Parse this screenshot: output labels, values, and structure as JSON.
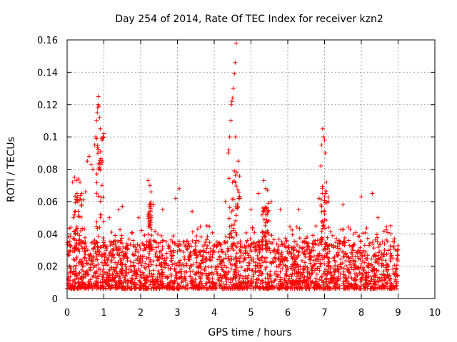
{
  "chart_data": {
    "type": "scatter",
    "title": "Day 254 of 2014, Rate Of TEC Index for receiver kzn2",
    "xlabel": "GPS time / hours",
    "ylabel": "ROTI / TECUs",
    "xlim": [
      0,
      10
    ],
    "ylim": [
      0,
      0.16
    ],
    "grid": true,
    "marker": "+",
    "color": "#ff0000",
    "x_ticks": [
      {
        "value": 0,
        "label": "0"
      },
      {
        "value": 1,
        "label": "1"
      },
      {
        "value": 2,
        "label": "2"
      },
      {
        "value": 3,
        "label": "3"
      },
      {
        "value": 4,
        "label": "4"
      },
      {
        "value": 5,
        "label": "5"
      },
      {
        "value": 6,
        "label": "6"
      },
      {
        "value": 7,
        "label": "7"
      },
      {
        "value": 8,
        "label": "8"
      },
      {
        "value": 9,
        "label": "9"
      },
      {
        "value": 10,
        "label": "10"
      }
    ],
    "y_ticks": [
      {
        "value": 0,
        "label": "0"
      },
      {
        "value": 0.02,
        "label": "0.02"
      },
      {
        "value": 0.04,
        "label": "0.04"
      },
      {
        "value": 0.06,
        "label": "0.06"
      },
      {
        "value": 0.08,
        "label": "0.08"
      },
      {
        "value": 0.1,
        "label": "0.1"
      },
      {
        "value": 0.12,
        "label": "0.12"
      },
      {
        "value": 0.14,
        "label": "0.14"
      },
      {
        "value": 0.16,
        "label": "0.16"
      }
    ],
    "series": [
      {
        "name": "kzn2",
        "x_range": [
          0,
          9
        ],
        "description": "dense scatter of ROTI samples",
        "peaks": [
          {
            "x": [
              0.8,
              1.0
            ],
            "y": [
              0.1,
              0.125
            ]
          },
          {
            "x": [
              0.15,
              0.4
            ],
            "y": [
              0.065,
              0.075
            ]
          },
          {
            "x": [
              2.2,
              2.3
            ],
            "y": [
              0.06,
              0.073
            ]
          },
          {
            "x": [
              4.4,
              4.7
            ],
            "y": [
              0.08,
              0.158
            ]
          },
          {
            "x": [
              5.3,
              5.5
            ],
            "y": [
              0.06,
              0.073
            ]
          },
          {
            "x": [
              6.9,
              7.1
            ],
            "y": [
              0.07,
              0.106
            ]
          }
        ],
        "points": [
          [
            0.1,
            0.044
          ],
          [
            0.15,
            0.072
          ],
          [
            0.2,
            0.075
          ],
          [
            0.25,
            0.073
          ],
          [
            0.3,
            0.074
          ],
          [
            0.35,
            0.072
          ],
          [
            0.4,
            0.065
          ],
          [
            0.45,
            0.061
          ],
          [
            0.5,
            0.066
          ],
          [
            0.55,
            0.085
          ],
          [
            0.6,
            0.088
          ],
          [
            0.65,
            0.083
          ],
          [
            0.7,
            0.08
          ],
          [
            0.75,
            0.095
          ],
          [
            0.78,
            0.1
          ],
          [
            0.8,
            0.11
          ],
          [
            0.82,
            0.115
          ],
          [
            0.83,
            0.118
          ],
          [
            0.84,
            0.12
          ],
          [
            0.85,
            0.125
          ],
          [
            0.87,
            0.119
          ],
          [
            0.88,
            0.112
          ],
          [
            0.9,
            0.105
          ],
          [
            0.92,
            0.083
          ],
          [
            0.95,
            0.07
          ],
          [
            0.98,
            0.1
          ],
          [
            1.0,
            0.102
          ],
          [
            1.15,
            0.05
          ],
          [
            1.4,
            0.055
          ],
          [
            1.5,
            0.057
          ],
          [
            1.95,
            0.05
          ],
          [
            2.2,
            0.073
          ],
          [
            2.25,
            0.07
          ],
          [
            2.28,
            0.066
          ],
          [
            2.35,
            0.058
          ],
          [
            2.6,
            0.055
          ],
          [
            2.95,
            0.062
          ],
          [
            3.05,
            0.068
          ],
          [
            3.4,
            0.054
          ],
          [
            3.8,
            0.045
          ],
          [
            4.3,
            0.06
          ],
          [
            4.38,
            0.09
          ],
          [
            4.4,
            0.092
          ],
          [
            4.42,
            0.1
          ],
          [
            4.45,
            0.11
          ],
          [
            4.47,
            0.12
          ],
          [
            4.48,
            0.122
          ],
          [
            4.5,
            0.124
          ],
          [
            4.52,
            0.13
          ],
          [
            4.55,
            0.139
          ],
          [
            4.57,
            0.146
          ],
          [
            4.6,
            0.158
          ],
          [
            4.58,
            0.1
          ],
          [
            4.62,
            0.078
          ],
          [
            4.65,
            0.085
          ],
          [
            5.0,
            0.055
          ],
          [
            5.2,
            0.065
          ],
          [
            5.35,
            0.073
          ],
          [
            5.4,
            0.068
          ],
          [
            5.45,
            0.067
          ],
          [
            5.55,
            0.06
          ],
          [
            5.8,
            0.055
          ],
          [
            6.3,
            0.055
          ],
          [
            6.85,
            0.062
          ],
          [
            6.9,
            0.082
          ],
          [
            6.92,
            0.095
          ],
          [
            6.95,
            0.105
          ],
          [
            6.97,
            0.1
          ],
          [
            7.0,
            0.098
          ],
          [
            7.02,
            0.09
          ],
          [
            7.05,
            0.072
          ],
          [
            7.1,
            0.06
          ],
          [
            7.5,
            0.058
          ],
          [
            8.0,
            0.063
          ],
          [
            8.3,
            0.065
          ],
          [
            8.45,
            0.05
          ],
          [
            8.8,
            0.045
          ],
          [
            8.9,
            0.037
          ]
        ]
      }
    ]
  }
}
